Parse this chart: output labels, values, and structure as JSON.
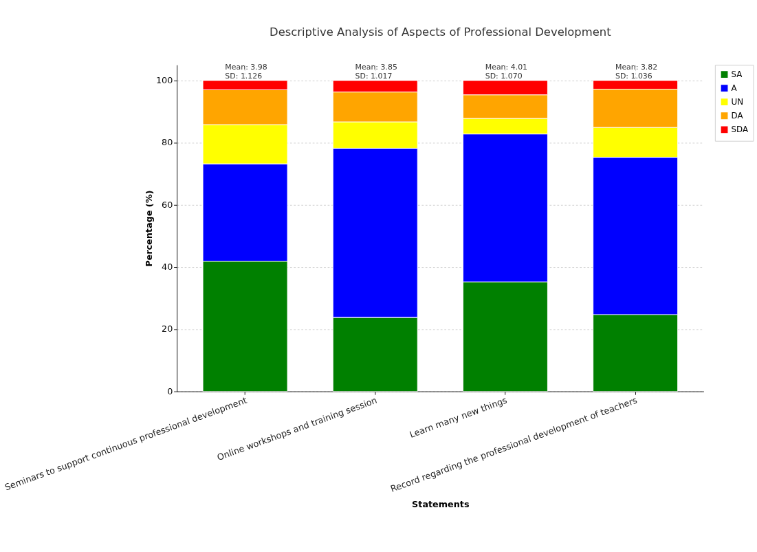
{
  "chart_data": {
    "type": "bar",
    "title": "Descriptive Analysis of Aspects of Professional Development",
    "xlabel": "Statements",
    "ylabel": "Percentage (%)",
    "categories": [
      "Seminars to support continuous professional development",
      "Online workshops and training session",
      "Learn many new things",
      "Record regarding the professional development of teachers"
    ],
    "stacked": true,
    "series": [
      {
        "name": "SA",
        "color": "#008000",
        "values": [
          41.9,
          23.8,
          35.2,
          24.7
        ]
      },
      {
        "name": "A",
        "color": "#0000ff",
        "values": [
          31.3,
          54.4,
          47.6,
          50.6
        ]
      },
      {
        "name": "UN",
        "color": "#ffff00",
        "values": [
          12.6,
          8.5,
          5.0,
          9.6
        ]
      },
      {
        "name": "DA",
        "color": "#ffa500",
        "values": [
          11.2,
          9.6,
          7.6,
          12.3
        ]
      },
      {
        "name": "SDA",
        "color": "#ff0000",
        "values": [
          3.0,
          3.7,
          4.6,
          2.8
        ]
      }
    ],
    "ylim": [
      0,
      105
    ],
    "yticks": [
      0,
      20,
      40,
      60,
      80,
      100
    ],
    "grid": true,
    "legend": "top right",
    "annotations": [
      {
        "text": "Mean: 3.98\nSD: 1.126",
        "x": "Seminars to support continuous professional development",
        "y": 100
      },
      {
        "text": "Mean: 3.85\nSD: 1.017",
        "x": "Online workshops and training session",
        "y": 100
      },
      {
        "text": "Mean: 4.01\nSD: 1.070",
        "x": "Learn many new things",
        "y": 100
      },
      {
        "text": "Mean: 3.82\nSD: 1.036",
        "x": "Record regarding the professional development of teachers",
        "y": 100
      }
    ]
  }
}
